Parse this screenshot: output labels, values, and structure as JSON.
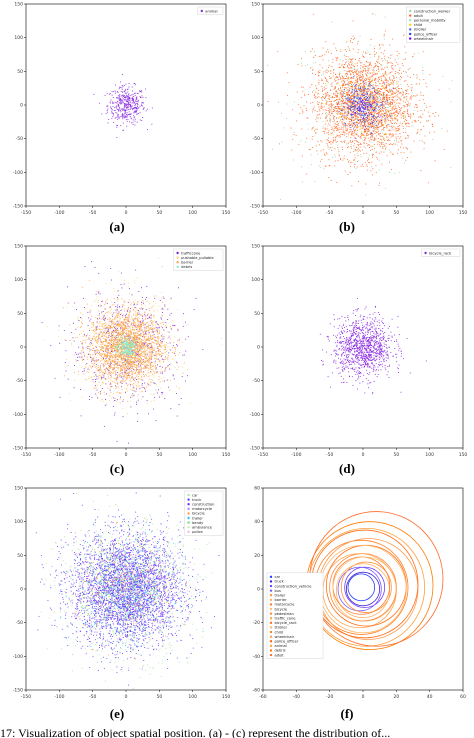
{
  "figure": {
    "footer_text": "17: Visualization of object spatial position. (a) - (c) represent the distribution of...",
    "captions": [
      "(a)",
      "(b)",
      "(c)",
      "(d)",
      "(e)",
      "(f)"
    ]
  },
  "chart_data": [
    {
      "type": "scatter",
      "xticks": [
        "-150",
        "-100",
        "-50",
        "0",
        "50",
        "100",
        "150"
      ],
      "yticks": [
        "150",
        "100",
        "50",
        "0",
        "-50",
        "-100",
        "-150"
      ],
      "xlim": [
        -150,
        150
      ],
      "ylim": [
        -150,
        150
      ],
      "series": [
        {
          "name": "animal",
          "color": "#8a2be2",
          "spread": 14,
          "count": 420
        }
      ],
      "legend": "top-right"
    },
    {
      "type": "scatter",
      "xticks": [
        "-150",
        "-100",
        "-50",
        "0",
        "50",
        "100",
        "150"
      ],
      "yticks": [
        "150",
        "100",
        "50",
        "0",
        "-50",
        "-100",
        "-150"
      ],
      "xlim": [
        -150,
        150
      ],
      "ylim": [
        -150,
        150
      ],
      "series": [
        {
          "name": "construction_worker",
          "color": "#a3d4a0",
          "spread": 55,
          "count": 300
        },
        {
          "name": "adult",
          "color": "#ff6a2a",
          "spread": 38,
          "count": 2600
        },
        {
          "name": "personal_mobility",
          "color": "#9fe0c0",
          "spread": 30,
          "count": 120
        },
        {
          "name": "child",
          "color": "#ffd400",
          "spread": 25,
          "count": 120
        },
        {
          "name": "stroller",
          "color": "#3a66ff",
          "spread": 14,
          "count": 160
        },
        {
          "name": "police_officer",
          "color": "#2b3fe0",
          "spread": 18,
          "count": 140
        },
        {
          "name": "wheelchair",
          "color": "#6a00ff",
          "spread": 12,
          "count": 90
        }
      ],
      "legend": "top-right"
    },
    {
      "type": "scatter",
      "xticks": [
        "-150",
        "-100",
        "-50",
        "0",
        "50",
        "100",
        "150"
      ],
      "yticks": [
        "150",
        "100",
        "50",
        "0",
        "-50",
        "-100",
        "-150"
      ],
      "xlim": [
        -150,
        150
      ],
      "ylim": [
        -150,
        150
      ],
      "series": [
        {
          "name": "trafficcone",
          "color": "#7a2bd9",
          "spread": 42,
          "count": 700
        },
        {
          "name": "pushable_pullable",
          "color": "#ffd27a",
          "spread": 40,
          "count": 500
        },
        {
          "name": "barrier",
          "color": "#ffa64d",
          "spread": 28,
          "count": 2200
        },
        {
          "name": "debris",
          "color": "#7ff0d0",
          "spread": 8,
          "count": 220
        }
      ],
      "legend": "top-right"
    },
    {
      "type": "scatter",
      "xticks": [
        "-150",
        "-100",
        "-50",
        "0",
        "50",
        "100",
        "150"
      ],
      "yticks": [
        "150",
        "100",
        "50",
        "0",
        "-50",
        "-100",
        "-150"
      ],
      "xlim": [
        -150,
        150
      ],
      "ylim": [
        -150,
        150
      ],
      "series": [
        {
          "name": "bicycle_rack",
          "color": "#8a2be2",
          "spread": 22,
          "count": 1100
        }
      ],
      "legend": "top-right"
    },
    {
      "type": "scatter",
      "xticks": [
        "-150",
        "-100",
        "-50",
        "0",
        "50",
        "100",
        "150"
      ],
      "yticks": [
        "150",
        "100",
        "50",
        "0",
        "-50",
        "-100",
        "-150"
      ],
      "xlim": [
        -150,
        150
      ],
      "ylim": [
        -150,
        150
      ],
      "series": [
        {
          "name": "car",
          "color": "#a8e8a0",
          "spread": 50,
          "count": 900
        },
        {
          "name": "truck",
          "color": "#5a4bff",
          "spread": 42,
          "count": 2400
        },
        {
          "name": "construction",
          "color": "#7d2ff0",
          "spread": 40,
          "count": 900
        },
        {
          "name": "motorcycle",
          "color": "#c07aff",
          "spread": 38,
          "count": 300
        },
        {
          "name": "bicycle",
          "color": "#ff9e3d",
          "spread": 38,
          "count": 200
        },
        {
          "name": "trailer",
          "color": "#34c4ff",
          "spread": 36,
          "count": 300
        },
        {
          "name": "bendy",
          "color": "#6fe07a",
          "spread": 36,
          "count": 200
        },
        {
          "name": "ambulance",
          "color": "#c8f0a8",
          "spread": 30,
          "count": 60
        },
        {
          "name": "police",
          "color": "#ffb3e0",
          "spread": 30,
          "count": 60
        }
      ],
      "legend": "top-right"
    },
    {
      "type": "line",
      "xticks": [
        "-60",
        "-40",
        "-20",
        "0",
        "20",
        "40",
        "60"
      ],
      "yticks": [
        "60",
        "40",
        "20",
        "0",
        "-20",
        "-40",
        "-60"
      ],
      "xlim": [
        -60,
        60
      ],
      "ylim": [
        -60,
        60
      ],
      "series": [
        {
          "name": "car",
          "color": "#1f3cff",
          "radius": 8,
          "cx": -1,
          "cy": 1
        },
        {
          "name": "truck",
          "color": "#3f1fd0",
          "radius": 10,
          "cx": 0,
          "cy": 0
        },
        {
          "name": "construction_vehicle",
          "color": "#6b3fff",
          "radius": 12,
          "cx": 1,
          "cy": 1
        },
        {
          "name": "bus",
          "color": "#7a5bff",
          "radius": 13,
          "cx": -2,
          "cy": 0
        },
        {
          "name": "trailer",
          "color": "#ff9440",
          "radius": 15,
          "cx": 2,
          "cy": 1
        },
        {
          "name": "barrier",
          "color": "#ffb060",
          "radius": 16,
          "cx": 0,
          "cy": -1
        },
        {
          "name": "motorcycle",
          "color": "#ff7a2a",
          "radius": 17,
          "cx": -1,
          "cy": 2
        },
        {
          "name": "bicycle",
          "color": "#ffc070",
          "radius": 19,
          "cx": 1,
          "cy": 0
        },
        {
          "name": "pedestrian",
          "color": "#ff8a3a",
          "radius": 20,
          "cx": 0,
          "cy": 1
        },
        {
          "name": "traffic_cone",
          "color": "#ffa54f",
          "radius": 22,
          "cx": -2,
          "cy": -1
        },
        {
          "name": "bicycle_rack",
          "color": "#ff6f1a",
          "radius": 24,
          "cx": 2,
          "cy": 2
        },
        {
          "name": "stroller",
          "color": "#ffb86a",
          "radius": 26,
          "cx": 0,
          "cy": 0
        },
        {
          "name": "child",
          "color": "#ff7f20",
          "radius": 28,
          "cx": -1,
          "cy": 1
        },
        {
          "name": "wheelchair",
          "color": "#ff9a50",
          "radius": 30,
          "cx": 3,
          "cy": 0
        },
        {
          "name": "police_officer",
          "color": "#ff6a10",
          "radius": 32,
          "cx": 1,
          "cy": 3
        },
        {
          "name": "animal",
          "color": "#ffa03a",
          "radius": 35,
          "cx": 2,
          "cy": 1
        },
        {
          "name": "debris",
          "color": "#ff7a00",
          "radius": 38,
          "cx": 4,
          "cy": 2
        },
        {
          "name": "adult",
          "color": "#ff6a2a",
          "radius": 40,
          "cx": 8,
          "cy": 6
        }
      ],
      "legend": "left"
    }
  ]
}
